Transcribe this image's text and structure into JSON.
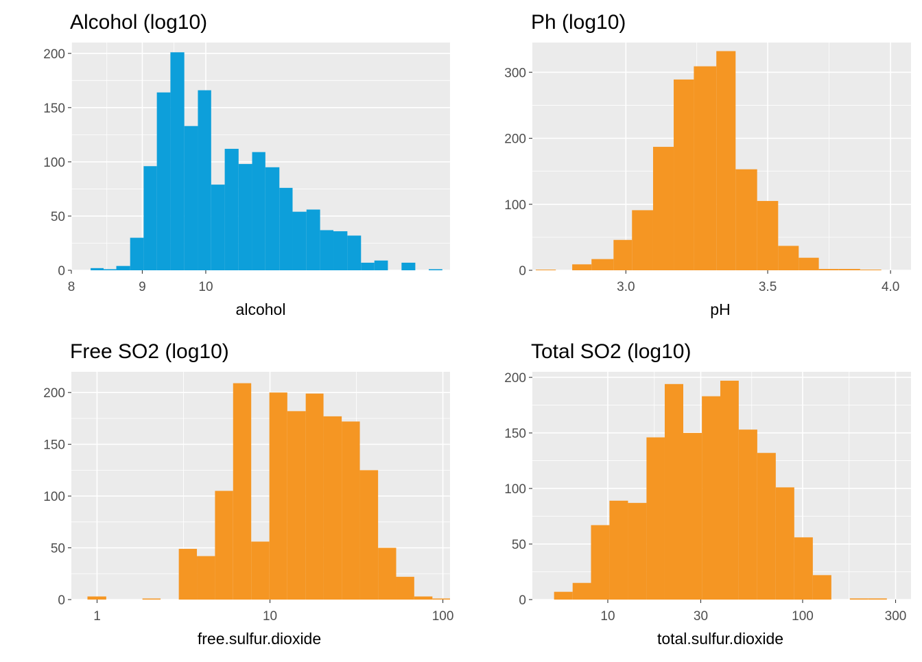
{
  "chart_data": [
    {
      "type": "bar",
      "title": "Alcohol (log10)",
      "xlabel": "alcohol",
      "ylabel": "",
      "x_scale": "log10",
      "xlim": [
        8,
        15
      ],
      "ylim": [
        0,
        210
      ],
      "bar_color": "#0d9fda",
      "x_ticks": [
        {
          "value": 8,
          "label": "8"
        },
        {
          "value": 9,
          "label": "9"
        },
        {
          "value": 10,
          "label": "10"
        }
      ],
      "y_ticks": [
        {
          "value": 0,
          "label": "0"
        },
        {
          "value": 50,
          "label": "50"
        },
        {
          "value": 100,
          "label": "100"
        },
        {
          "value": 150,
          "label": "150"
        },
        {
          "value": 200,
          "label": "200"
        }
      ],
      "bins": [
        {
          "x0": 8.26,
          "x1": 8.44,
          "count": 2
        },
        {
          "x0": 8.44,
          "x1": 8.62,
          "count": 1
        },
        {
          "x0": 8.62,
          "x1": 8.82,
          "count": 4
        },
        {
          "x0": 8.82,
          "x1": 9.02,
          "count": 30
        },
        {
          "x0": 9.02,
          "x1": 9.22,
          "count": 96
        },
        {
          "x0": 9.22,
          "x1": 9.43,
          "count": 164
        },
        {
          "x0": 9.43,
          "x1": 9.65,
          "count": 201
        },
        {
          "x0": 9.65,
          "x1": 9.87,
          "count": 133
        },
        {
          "x0": 9.87,
          "x1": 10.09,
          "count": 166
        },
        {
          "x0": 10.09,
          "x1": 10.32,
          "count": 79
        },
        {
          "x0": 10.32,
          "x1": 10.56,
          "count": 112
        },
        {
          "x0": 10.56,
          "x1": 10.8,
          "count": 98
        },
        {
          "x0": 10.8,
          "x1": 11.04,
          "count": 109
        },
        {
          "x0": 11.04,
          "x1": 11.3,
          "count": 95
        },
        {
          "x0": 11.3,
          "x1": 11.55,
          "count": 76
        },
        {
          "x0": 11.55,
          "x1": 11.82,
          "count": 54
        },
        {
          "x0": 11.82,
          "x1": 12.09,
          "count": 56
        },
        {
          "x0": 12.09,
          "x1": 12.36,
          "count": 37
        },
        {
          "x0": 12.36,
          "x1": 12.65,
          "count": 36
        },
        {
          "x0": 12.65,
          "x1": 12.94,
          "count": 32
        },
        {
          "x0": 12.94,
          "x1": 13.23,
          "count": 7
        },
        {
          "x0": 13.23,
          "x1": 13.53,
          "count": 9
        },
        {
          "x0": 13.53,
          "x1": 13.84,
          "count": 0
        },
        {
          "x0": 13.84,
          "x1": 14.16,
          "count": 7
        },
        {
          "x0": 14.16,
          "x1": 14.48,
          "count": 0
        },
        {
          "x0": 14.48,
          "x1": 14.81,
          "count": 1
        }
      ]
    },
    {
      "type": "bar",
      "title": "Ph (log10)",
      "xlabel": "pH",
      "ylabel": "",
      "x_scale": "log10",
      "xlim": [
        2.71,
        4.09
      ],
      "ylim": [
        0,
        345
      ],
      "bar_color": "#f59623",
      "x_ticks": [
        {
          "value": 3.0,
          "label": "3.0"
        },
        {
          "value": 3.5,
          "label": "3.5"
        },
        {
          "value": 4.0,
          "label": "4.0"
        }
      ],
      "y_ticks": [
        {
          "value": 0,
          "label": "0"
        },
        {
          "value": 100,
          "label": "100"
        },
        {
          "value": 200,
          "label": "200"
        },
        {
          "value": 300,
          "label": "300"
        }
      ],
      "bins": [
        {
          "x0": 2.72,
          "x1": 2.78,
          "count": 1
        },
        {
          "x0": 2.78,
          "x1": 2.83,
          "count": 0
        },
        {
          "x0": 2.83,
          "x1": 2.89,
          "count": 9
        },
        {
          "x0": 2.89,
          "x1": 2.96,
          "count": 17
        },
        {
          "x0": 2.96,
          "x1": 3.02,
          "count": 46
        },
        {
          "x0": 3.02,
          "x1": 3.09,
          "count": 91
        },
        {
          "x0": 3.09,
          "x1": 3.16,
          "count": 187
        },
        {
          "x0": 3.16,
          "x1": 3.23,
          "count": 289
        },
        {
          "x0": 3.23,
          "x1": 3.31,
          "count": 309
        },
        {
          "x0": 3.31,
          "x1": 3.38,
          "count": 332
        },
        {
          "x0": 3.38,
          "x1": 3.46,
          "count": 153
        },
        {
          "x0": 3.46,
          "x1": 3.54,
          "count": 105
        },
        {
          "x0": 3.54,
          "x1": 3.62,
          "count": 37
        },
        {
          "x0": 3.62,
          "x1": 3.7,
          "count": 19
        },
        {
          "x0": 3.7,
          "x1": 3.78,
          "count": 2
        },
        {
          "x0": 3.78,
          "x1": 3.87,
          "count": 2
        },
        {
          "x0": 3.87,
          "x1": 3.96,
          "count": 1
        },
        {
          "x0": 3.96,
          "x1": 4.05,
          "count": 0
        }
      ]
    },
    {
      "type": "bar",
      "title": "Free SO2 (log10)",
      "xlabel": "free.sulfur.dioxide",
      "ylabel": "",
      "x_scale": "log10",
      "xlim": [
        0.71,
        110
      ],
      "ylim": [
        0,
        220
      ],
      "bar_color": "#f59623",
      "x_ticks": [
        {
          "value": 1,
          "label": "1"
        },
        {
          "value": 10,
          "label": "10"
        },
        {
          "value": 100,
          "label": "100"
        }
      ],
      "y_ticks": [
        {
          "value": 0,
          "label": "0"
        },
        {
          "value": 50,
          "label": "50"
        },
        {
          "value": 100,
          "label": "100"
        },
        {
          "value": 150,
          "label": "150"
        },
        {
          "value": 200,
          "label": "200"
        }
      ],
      "bins": [
        {
          "x0": 0.88,
          "x1": 1.13,
          "count": 3
        },
        {
          "x0": 1.13,
          "x1": 1.44,
          "count": 0
        },
        {
          "x0": 1.44,
          "x1": 1.83,
          "count": 0
        },
        {
          "x0": 1.83,
          "x1": 2.33,
          "count": 1
        },
        {
          "x0": 2.33,
          "x1": 2.97,
          "count": 0
        },
        {
          "x0": 2.97,
          "x1": 3.78,
          "count": 49
        },
        {
          "x0": 3.78,
          "x1": 4.81,
          "count": 42
        },
        {
          "x0": 4.81,
          "x1": 6.12,
          "count": 105
        },
        {
          "x0": 6.12,
          "x1": 7.79,
          "count": 209
        },
        {
          "x0": 7.79,
          "x1": 9.92,
          "count": 56
        },
        {
          "x0": 9.92,
          "x1": 12.6,
          "count": 200
        },
        {
          "x0": 12.6,
          "x1": 16.1,
          "count": 182
        },
        {
          "x0": 16.1,
          "x1": 20.4,
          "count": 199
        },
        {
          "x0": 20.4,
          "x1": 26.0,
          "count": 177
        },
        {
          "x0": 26.0,
          "x1": 33.1,
          "count": 172
        },
        {
          "x0": 33.1,
          "x1": 42.2,
          "count": 125
        },
        {
          "x0": 42.2,
          "x1": 53.7,
          "count": 50
        },
        {
          "x0": 53.7,
          "x1": 68.3,
          "count": 22
        },
        {
          "x0": 68.3,
          "x1": 87.0,
          "count": 3
        },
        {
          "x0": 87.0,
          "x1": 110.0,
          "count": 1
        }
      ]
    },
    {
      "type": "bar",
      "title": "Total SO2 (log10)",
      "xlabel": "total.sulfur.dioxide",
      "ylabel": "",
      "x_scale": "log10",
      "xlim": [
        4.1,
        360
      ],
      "ylim": [
        0,
        205
      ],
      "bar_color": "#f59623",
      "x_ticks": [
        {
          "value": 10,
          "label": "10"
        },
        {
          "value": 30,
          "label": "30"
        },
        {
          "value": 100,
          "label": "100"
        },
        {
          "value": 300,
          "label": "300"
        }
      ],
      "y_ticks": [
        {
          "value": 0,
          "label": "0"
        },
        {
          "value": 50,
          "label": "50"
        },
        {
          "value": 100,
          "label": "100"
        },
        {
          "value": 150,
          "label": "150"
        },
        {
          "value": 200,
          "label": "200"
        }
      ],
      "bins": [
        {
          "x0": 5.3,
          "x1": 6.6,
          "count": 7
        },
        {
          "x0": 6.6,
          "x1": 8.2,
          "count": 15
        },
        {
          "x0": 8.2,
          "x1": 10.2,
          "count": 67
        },
        {
          "x0": 10.2,
          "x1": 12.7,
          "count": 89
        },
        {
          "x0": 12.7,
          "x1": 15.8,
          "count": 87
        },
        {
          "x0": 15.8,
          "x1": 19.6,
          "count": 146
        },
        {
          "x0": 19.6,
          "x1": 24.4,
          "count": 194
        },
        {
          "x0": 24.4,
          "x1": 30.4,
          "count": 150
        },
        {
          "x0": 30.4,
          "x1": 37.8,
          "count": 183
        },
        {
          "x0": 37.8,
          "x1": 47.0,
          "count": 197
        },
        {
          "x0": 47.0,
          "x1": 58.5,
          "count": 153
        },
        {
          "x0": 58.5,
          "x1": 72.8,
          "count": 132
        },
        {
          "x0": 72.8,
          "x1": 90.6,
          "count": 101
        },
        {
          "x0": 90.6,
          "x1": 112.8,
          "count": 56
        },
        {
          "x0": 112.8,
          "x1": 140.4,
          "count": 22
        },
        {
          "x0": 140.4,
          "x1": 174.7,
          "count": 0
        },
        {
          "x0": 174.7,
          "x1": 217.4,
          "count": 1
        },
        {
          "x0": 217.4,
          "x1": 270.6,
          "count": 1
        }
      ]
    }
  ]
}
